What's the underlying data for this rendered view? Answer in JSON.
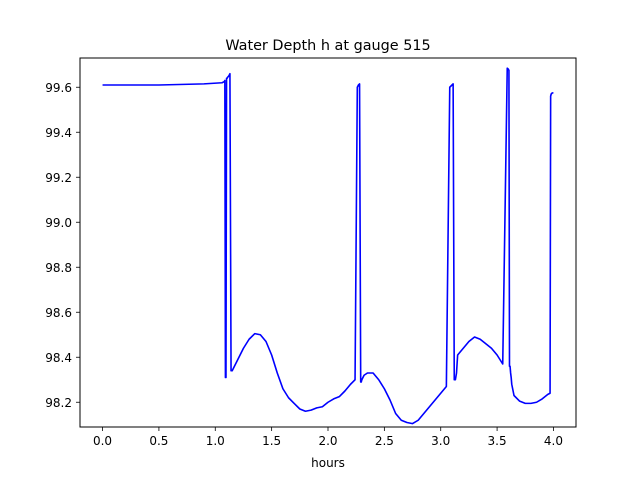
{
  "chart_data": {
    "type": "line",
    "title": "Water Depth h at gauge 515",
    "xlabel": "hours",
    "ylabel": "",
    "xlim": [
      -0.2,
      4.2
    ],
    "ylim": [
      98.09,
      99.73
    ],
    "grid": false,
    "xticks": [
      0.0,
      0.5,
      1.0,
      1.5,
      2.0,
      2.5,
      3.0,
      3.5,
      4.0
    ],
    "xtick_labels": [
      "0.0",
      "0.5",
      "1.0",
      "1.5",
      "2.0",
      "2.5",
      "3.0",
      "3.5",
      "4.0"
    ],
    "yticks": [
      98.2,
      98.4,
      98.6,
      98.8,
      99.0,
      99.2,
      99.4,
      99.6
    ],
    "ytick_labels": [
      "98.2",
      "98.4",
      "98.6",
      "98.8",
      "99.0",
      "99.2",
      "99.4",
      "99.6"
    ],
    "series": [
      {
        "color": "#0000ff",
        "x": [
          0.0,
          0.5,
          0.9,
          1.06,
          1.08,
          1.085,
          1.09,
          1.095,
          1.1,
          1.105,
          1.11,
          1.12,
          1.13,
          1.14,
          1.15,
          1.2,
          1.25,
          1.3,
          1.35,
          1.4,
          1.45,
          1.5,
          1.55,
          1.6,
          1.65,
          1.7,
          1.75,
          1.8,
          1.85,
          1.9,
          1.95,
          2.0,
          2.05,
          2.1,
          2.15,
          2.2,
          2.24,
          2.26,
          2.27,
          2.28,
          2.29,
          2.295,
          2.3,
          2.32,
          2.35,
          2.4,
          2.45,
          2.5,
          2.55,
          2.6,
          2.65,
          2.7,
          2.75,
          2.8,
          2.85,
          2.9,
          2.95,
          3.0,
          3.05,
          3.08,
          3.1,
          3.11,
          3.12,
          3.13,
          3.14,
          3.145,
          3.15,
          3.2,
          3.25,
          3.3,
          3.35,
          3.4,
          3.45,
          3.5,
          3.55,
          3.59,
          3.6,
          3.605,
          3.61,
          3.615,
          3.62,
          3.625,
          3.63,
          3.65,
          3.7,
          3.75,
          3.8,
          3.85,
          3.9,
          3.95,
          3.97,
          3.975,
          3.98,
          3.99,
          4.0
        ],
        "y": [
          99.61,
          99.61,
          99.615,
          99.62,
          99.625,
          99.63,
          98.31,
          98.31,
          99.64,
          99.64,
          99.645,
          99.65,
          99.66,
          98.34,
          98.34,
          98.39,
          98.44,
          98.48,
          98.505,
          98.5,
          98.47,
          98.41,
          98.33,
          98.26,
          98.22,
          98.195,
          98.17,
          98.16,
          98.165,
          98.175,
          98.18,
          98.2,
          98.215,
          98.225,
          98.25,
          98.28,
          98.3,
          99.6,
          99.61,
          99.615,
          98.29,
          98.29,
          98.3,
          98.32,
          98.33,
          98.33,
          98.3,
          98.26,
          98.21,
          98.15,
          98.12,
          98.11,
          98.105,
          98.12,
          98.15,
          98.18,
          98.21,
          98.24,
          98.27,
          99.6,
          99.61,
          99.615,
          98.3,
          98.3,
          98.33,
          98.37,
          98.41,
          98.44,
          98.47,
          98.49,
          98.48,
          98.46,
          98.44,
          98.41,
          98.37,
          99.685,
          99.68,
          99.675,
          98.36,
          98.36,
          98.33,
          98.31,
          98.28,
          98.23,
          98.205,
          98.195,
          98.195,
          98.2,
          98.215,
          98.235,
          98.24,
          99.56,
          99.57,
          99.575,
          99.575
        ]
      }
    ]
  }
}
